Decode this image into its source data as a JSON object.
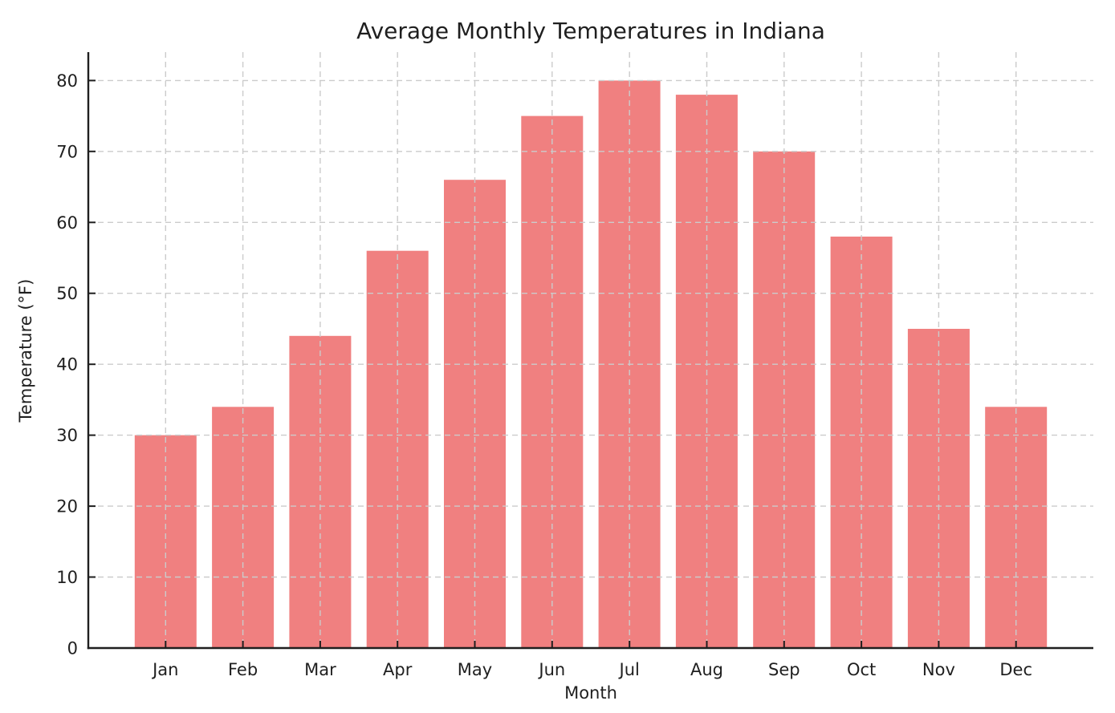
{
  "chart_data": {
    "type": "bar",
    "title": "Average Monthly Temperatures in Indiana",
    "xlabel": "Month",
    "ylabel": "Temperature (°F)",
    "categories": [
      "Jan",
      "Feb",
      "Mar",
      "Apr",
      "May",
      "Jun",
      "Jul",
      "Aug",
      "Sep",
      "Oct",
      "Nov",
      "Dec"
    ],
    "values": [
      30,
      34,
      44,
      56,
      66,
      75,
      80,
      78,
      70,
      58,
      45,
      34
    ],
    "ylim": [
      0,
      84
    ],
    "yticks": [
      0,
      10,
      20,
      30,
      40,
      50,
      60,
      70,
      80
    ],
    "bar_color": "#F08080",
    "grid_color": "#cbcbcb",
    "grid_style": "dashed",
    "grid_on": true,
    "axis_color": "#1f1f1f",
    "text_color": "#1f1f1f",
    "legend": null
  }
}
